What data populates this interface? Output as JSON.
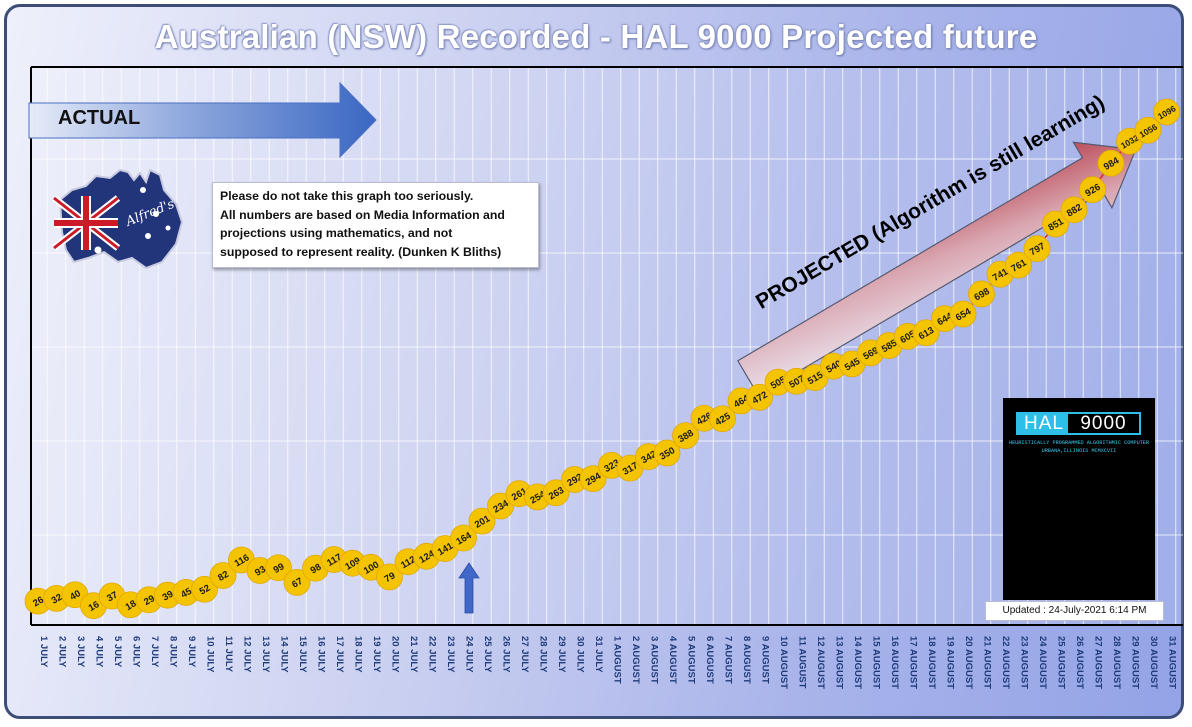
{
  "chart_data": {
    "type": "line",
    "title": "Australian (NSW) Recorded - HAL 9000 Projected future",
    "x": [
      "1 JULY",
      "2 JULY",
      "3 JULY",
      "4 JULY",
      "5 JULY",
      "6 JULY",
      "7 JULY",
      "8 JULY",
      "9 JULY",
      "10 JULY",
      "11 JULY",
      "12 JULY",
      "13 JULY",
      "14 JULY",
      "15 JULY",
      "16 JULY",
      "17 JULY",
      "18 JULY",
      "19 JULY",
      "20 JULY",
      "21 JULY",
      "22 JULY",
      "23 JULY",
      "24 JULY",
      "25 JULY",
      "26 JULY",
      "27 JULY",
      "28 JULY",
      "29 JULY",
      "30 JULY",
      "31 JULY",
      "1 AUGUST",
      "2 AUGUST",
      "3 AUGUST",
      "4 AUGUST",
      "5 AUGUST",
      "6 AUGUST",
      "7 AUGUST",
      "8 AUGUST",
      "9 AUGUST",
      "10 AUGUST",
      "11 AUGUST",
      "12 AUGUST",
      "13 AUGUST",
      "14 AUGUST",
      "15 AUGUST",
      "16 AUGUST",
      "17 AUGUST",
      "18 AUGUST",
      "19 AUGUST",
      "20 AUGUST",
      "21 AUGUST",
      "22 AUGUST",
      "23 AUGUST",
      "24 AUGUST",
      "25 AUGUST",
      "26 AUGUST",
      "27 AUGUST",
      "28 AUGUST",
      "29 AUGUST",
      "30 AUGUST",
      "31 AUGUST"
    ],
    "values": [
      26,
      32,
      40,
      16,
      37,
      18,
      29,
      39,
      45,
      52,
      82,
      116,
      93,
      99,
      67,
      98,
      117,
      109,
      100,
      79,
      112,
      124,
      141,
      164,
      201,
      234,
      261,
      254,
      263,
      292,
      294,
      323,
      317,
      342,
      350,
      388,
      426,
      425,
      464,
      472,
      505,
      507,
      515,
      540,
      545,
      569,
      585,
      605,
      613,
      644,
      654,
      698,
      741,
      761,
      797,
      851,
      882,
      926,
      984,
      1032,
      1056,
      1096
    ],
    "ylim": [
      0,
      1180
    ],
    "grid": true,
    "legend": "none",
    "colors": {
      "marker": "#f5c400",
      "line": "#e32b2b",
      "grid": "#ffffff",
      "axis": "#000000",
      "tick_label": "#1f3b7a"
    },
    "annotations": {
      "actual": "ACTUAL",
      "projected": "PROJECTED (Algorithm is still learning)",
      "note_lines": [
        "Please do not take this graph too seriously.",
        "All numbers are based on Media Information and",
        "projections using  mathematics, and not",
        "supposed to represent reality.  (Dunken K Bliths)"
      ],
      "updated": "Updated : 24-July-2021  6:14 PM",
      "marker_day": "24 JULY"
    }
  },
  "hal": {
    "word1": "HAL",
    "word2": "9000",
    "line1": "HEURISTICALLY PROGRAMMED ALGORITHMIC COMPUTER",
    "line2": "URBANA,ILLINOIS MCMXCVII"
  },
  "map": {
    "signature": "Alfred's"
  }
}
